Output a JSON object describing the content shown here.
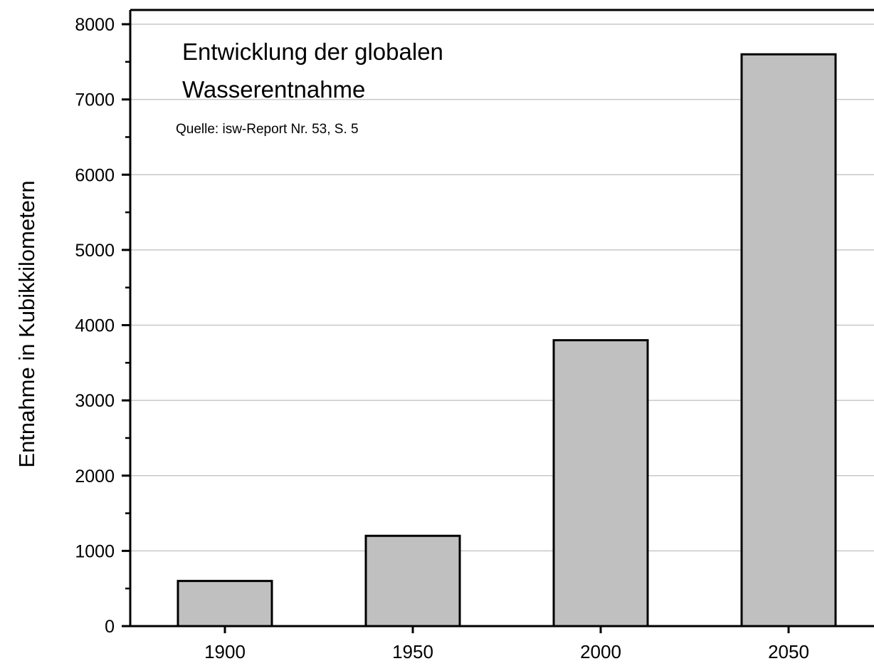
{
  "chart_data": {
    "type": "bar",
    "title_line1": "Entwicklung der globalen",
    "title_line2": "Wasserentnahme",
    "subtitle": "Quelle: isw-Report Nr. 53, S. 5",
    "xlabel": "",
    "ylabel": "Entnahme in Kubikkilometern",
    "categories": [
      "1900",
      "1950",
      "2000",
      "2050"
    ],
    "values": [
      600,
      1200,
      3800,
      7600
    ],
    "ylim": [
      0,
      8000
    ],
    "yticks": [
      "0",
      "1000",
      "2000",
      "3000",
      "4000",
      "5000",
      "6000",
      "7000",
      "8000"
    ],
    "grid": true,
    "bar_color": "#c0c0c0",
    "grid_color": "#c8c8c8"
  }
}
